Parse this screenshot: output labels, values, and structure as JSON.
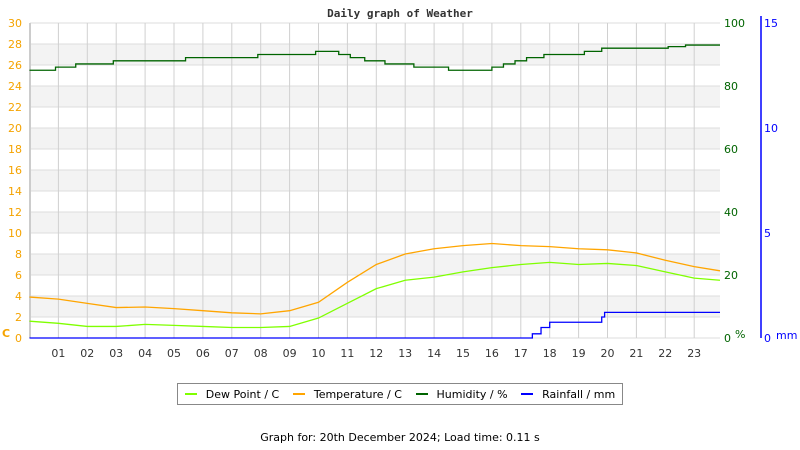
{
  "chart_data": {
    "type": "line",
    "title": "Daily graph of Weather",
    "x_tick_labels": [
      "01",
      "02",
      "03",
      "04",
      "05",
      "06",
      "07",
      "08",
      "09",
      "10",
      "11",
      "12",
      "13",
      "14",
      "15",
      "16",
      "17",
      "18",
      "19",
      "20",
      "21",
      "22",
      "23"
    ],
    "xlim_hours": [
      0,
      23.9
    ],
    "grid": true,
    "axes": [
      {
        "id": "temp",
        "side": "left",
        "unit_label": "C",
        "range": [
          0,
          30
        ],
        "ticks": [
          0,
          2,
          4,
          6,
          8,
          10,
          12,
          14,
          16,
          18,
          20,
          22,
          24,
          26,
          28,
          30
        ],
        "color": "#f5a300"
      },
      {
        "id": "humidity",
        "side": "right",
        "unit_label": "%",
        "range": [
          0,
          100
        ],
        "ticks": [
          0,
          20,
          40,
          60,
          80,
          100
        ],
        "color": "#006400"
      },
      {
        "id": "rain",
        "side": "right-outer",
        "unit_label": "mm",
        "range": [
          0,
          15
        ],
        "ticks": [
          0,
          5,
          10,
          15
        ],
        "color": "#0000ff"
      }
    ],
    "series": [
      {
        "name": "Dew Point / C",
        "axis": "temp",
        "color": "#7fff00",
        "step": false,
        "x": [
          0,
          1,
          2,
          3,
          4,
          5,
          6,
          7,
          8,
          9,
          10,
          11,
          12,
          13,
          14,
          15,
          16,
          17,
          18,
          19,
          20,
          21,
          22,
          23,
          23.9
        ],
        "values": [
          1.6,
          1.4,
          1.1,
          1.1,
          1.3,
          1.2,
          1.1,
          1.0,
          1.0,
          1.1,
          1.9,
          3.3,
          4.7,
          5.5,
          5.8,
          6.3,
          6.7,
          7.0,
          7.2,
          7.0,
          7.1,
          6.9,
          6.3,
          5.7,
          5.5
        ]
      },
      {
        "name": "Temperature / C",
        "axis": "temp",
        "color": "#ffa500",
        "step": false,
        "x": [
          0,
          1,
          2,
          3,
          4,
          5,
          6,
          7,
          8,
          9,
          10,
          11,
          12,
          13,
          14,
          15,
          16,
          17,
          18,
          19,
          20,
          21,
          22,
          23,
          23.9
        ],
        "values": [
          3.9,
          3.7,
          3.3,
          2.9,
          2.95,
          2.8,
          2.6,
          2.4,
          2.3,
          2.6,
          3.4,
          5.3,
          7.0,
          8.0,
          8.5,
          8.8,
          9.0,
          8.8,
          8.7,
          8.5,
          8.4,
          8.1,
          7.4,
          6.8,
          6.4
        ]
      },
      {
        "name": "Humidity / %",
        "axis": "humidity",
        "color": "#006400",
        "step": true,
        "x": [
          0,
          0.9,
          1.6,
          2.9,
          5.4,
          7.9,
          9.9,
          10.7,
          11.1,
          11.6,
          12.3,
          13.3,
          14.5,
          16.0,
          16.4,
          16.8,
          17.2,
          17.8,
          19.2,
          19.8,
          22.1,
          22.7,
          23.9
        ],
        "values": [
          85,
          86,
          87,
          88,
          89,
          90,
          91,
          90,
          89,
          88,
          87,
          86,
          85,
          86,
          87,
          88,
          89,
          90,
          91,
          92,
          92.5,
          93,
          93
        ]
      },
      {
        "name": "Rainfall / mm",
        "axis": "rain",
        "color": "#0000ff",
        "step": true,
        "x": [
          0,
          17.4,
          17.7,
          18.0,
          19.8,
          19.9,
          23.9
        ],
        "values": [
          0,
          0.2,
          0.5,
          0.75,
          1.0,
          1.22,
          1.22
        ]
      }
    ]
  },
  "footer": "Graph for: 20th December 2024; Load time: 0.11 s"
}
